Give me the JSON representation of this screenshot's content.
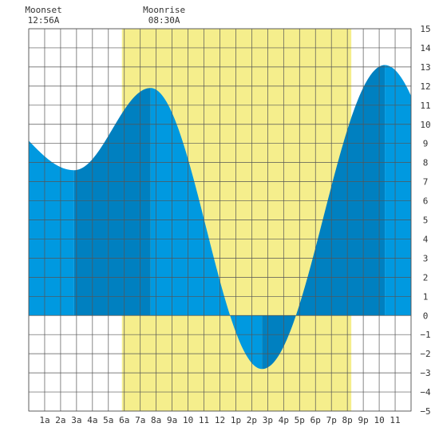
{
  "chart_data": {
    "type": "area",
    "title": "",
    "xlabel": "",
    "ylabel": "",
    "x_tick_labels": [
      "1a",
      "2a",
      "3a",
      "4a",
      "5a",
      "6a",
      "7a",
      "8a",
      "9a",
      "10",
      "11",
      "12",
      "1p",
      "2p",
      "3p",
      "4p",
      "5p",
      "6p",
      "7p",
      "8p",
      "9p",
      "10",
      "11"
    ],
    "xlim": [
      0,
      24
    ],
    "ylim": [
      -5,
      15
    ],
    "y_ticks": [
      -5,
      -4,
      -3,
      -2,
      -1,
      0,
      1,
      2,
      3,
      4,
      5,
      6,
      7,
      8,
      9,
      10,
      11,
      12,
      13,
      14,
      15
    ],
    "grid": true,
    "daylight": {
      "start_hour": 5.85,
      "end_hour": 20.25
    },
    "moon_events": [
      {
        "label": "Moonset",
        "time": "12:56A",
        "hour": 0.93
      },
      {
        "label": "Moonrise",
        "time": "08:30A",
        "hour": 8.5
      }
    ],
    "series": [
      {
        "tide_extremes": [
          {
            "hour": 2.85,
            "height": 7.6
          },
          {
            "hour": 7.65,
            "height": 11.9
          },
          {
            "hour": 14.65,
            "height": -2.8
          },
          {
            "hour": 22.35,
            "height": 13.1
          }
        ],
        "start": {
          "hour": 0,
          "height": 10.6
        },
        "end": {
          "hour": 24,
          "height": 12.2
        }
      }
    ],
    "colors": {
      "tide_light": "#0099e0",
      "tide_dark": "#0080c0",
      "daylight": "#f5ee8c",
      "grid": "#555555",
      "background": "#ffffff"
    }
  }
}
